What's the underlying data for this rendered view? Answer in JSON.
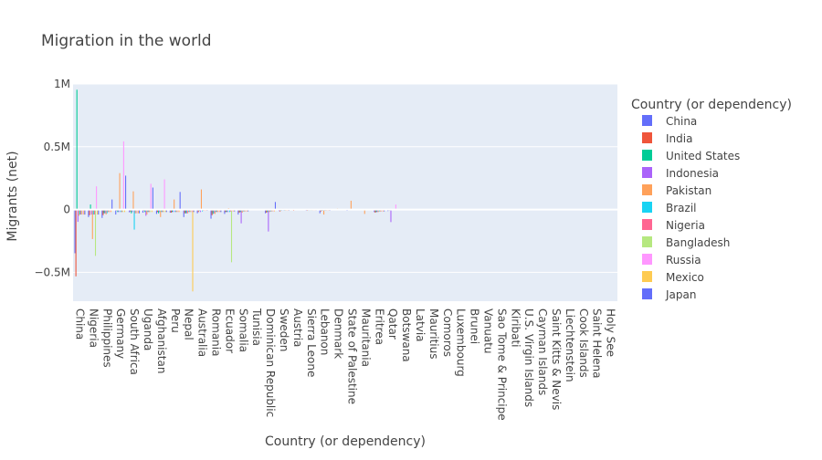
{
  "chart_data": {
    "type": "bar",
    "title": "Migration in the world",
    "xlabel": "Country (or dependency)",
    "ylabel": "Migrants (net)",
    "ylim": [
      -730000,
      1000000
    ],
    "yticks": [
      {
        "value": 1000000,
        "label": "1M"
      },
      {
        "value": 500000,
        "label": "0.5M"
      },
      {
        "value": 0,
        "label": "0"
      },
      {
        "value": -500000,
        "label": "−0.5M"
      }
    ],
    "grid": true,
    "legend": {
      "title": "Country (or dependency)",
      "position": "right"
    },
    "categories": [
      "China",
      "Nigeria",
      "Philippines",
      "Germany",
      "South Africa",
      "Uganda",
      "Afghanistan",
      "Peru",
      "Nepal",
      "Australia",
      "Romania",
      "Ecuador",
      "Somalia",
      "Tunisia",
      "Dominican Republic",
      "Sweden",
      "Austria",
      "Sierra Leone",
      "Lebanon",
      "Denmark",
      "State of Palestine",
      "Mauritania",
      "Eritrea",
      "Qatar",
      "Botswana",
      "Latvia",
      "Mauritius",
      "Comoros",
      "Luxembourg",
      "Brunei",
      "Vanuatu",
      "Sao Tome & Principe",
      "Kiribati",
      "U.S. Virgin Islands",
      "Cayman Islands",
      "Saint Kitts & Nevis",
      "Liechtenstein",
      "Cook Islands",
      "Saint Helena",
      "Holy See"
    ],
    "series": [
      {
        "name": "China",
        "color": "#636efa",
        "values": [
          -348000,
          -60000,
          -67000,
          -40000,
          -22000,
          -25000,
          -35000,
          -25000,
          -60000,
          -30000,
          -73000,
          -35000,
          -40000,
          -4000,
          -30000,
          -12000,
          -3000,
          -10000,
          -30000,
          -4000,
          -10000,
          -5000,
          -20000,
          -12000,
          -5000,
          -5000,
          -2000,
          -2000,
          -1000,
          0,
          -500,
          -500,
          -1000,
          -500,
          -400,
          -200,
          -200,
          -100,
          0,
          0
        ]
      },
      {
        "name": "India",
        "color": "#ef553b",
        "values": [
          -532000,
          -45000,
          -45000,
          -10000,
          -15000,
          -10000,
          -20000,
          -25000,
          -30000,
          -20000,
          -45000,
          -20000,
          -25000,
          -3000,
          -25000,
          -15000,
          -10000,
          -10000,
          -15000,
          -5000,
          -5000,
          -5000,
          -25000,
          -8000,
          -3000,
          -3000,
          -2000,
          -2000,
          -1000,
          0,
          0,
          0,
          -500,
          -500,
          -300,
          -200,
          -200,
          -100,
          0,
          0
        ]
      },
      {
        "name": "United States",
        "color": "#00cc96",
        "values": [
          954000,
          40000,
          -30000,
          -20000,
          -30000,
          -20000,
          -30000,
          -20000,
          -30000,
          -10000,
          -35000,
          -20000,
          -20000,
          -3000,
          -20000,
          -10000,
          -3000,
          -8000,
          -10000,
          -3000,
          -5000,
          -5000,
          -20000,
          -8000,
          -2000,
          -2000,
          -1000,
          -1000,
          -500,
          0,
          0,
          0,
          -500,
          -300,
          -200,
          -100,
          -100,
          -100,
          0,
          0
        ]
      },
      {
        "name": "Indonesia",
        "color": "#ab63fa",
        "values": [
          -98000,
          -40000,
          -30000,
          -20000,
          -20000,
          -50000,
          -20000,
          -20000,
          -30000,
          -20000,
          -30000,
          -20000,
          -110000,
          -3000,
          -175000,
          -10000,
          -3000,
          -8000,
          -10000,
          -3000,
          -5000,
          -5000,
          -20000,
          -100000,
          -2000,
          -2000,
          -1000,
          -1000,
          -500,
          0,
          0,
          0,
          -500,
          -300,
          -200,
          -100,
          -100,
          -100,
          0,
          0
        ]
      },
      {
        "name": "Pakistan",
        "color": "#ffa15a",
        "values": [
          -50000,
          -235000,
          -40000,
          290000,
          145000,
          -40000,
          -60000,
          80000,
          -30000,
          160000,
          -35000,
          10000,
          -25000,
          -3000,
          -20000,
          5000,
          -3000,
          -8000,
          -40000,
          8000,
          70000,
          -35000,
          -20000,
          -5000,
          -2000,
          -2000,
          -1000,
          -1000,
          2000,
          -500,
          0,
          0,
          -500,
          -300,
          -200,
          -100,
          -100,
          -100,
          0,
          0
        ]
      },
      {
        "name": "Brazil",
        "color": "#19d3f3",
        "values": [
          -40000,
          -40000,
          -30000,
          -20000,
          -160000,
          -20000,
          -20000,
          -20000,
          -20000,
          -15000,
          -20000,
          -20000,
          -15000,
          -3000,
          -15000,
          -10000,
          -3000,
          -8000,
          -10000,
          -3000,
          -5000,
          -5000,
          -15000,
          -5000,
          -2000,
          -2000,
          -1000,
          -1000,
          -500,
          0,
          0,
          0,
          -500,
          -300,
          -200,
          -100,
          -100,
          -100,
          0,
          0
        ]
      },
      {
        "name": "Nigeria",
        "color": "#ff6692",
        "values": [
          -40000,
          -40000,
          -20000,
          -20000,
          -30000,
          -20000,
          -20000,
          -20000,
          -20000,
          -10000,
          -20000,
          -15000,
          -15000,
          -3000,
          -15000,
          -10000,
          -3000,
          -8000,
          -10000,
          -3000,
          -5000,
          -5000,
          -15000,
          -5000,
          -2000,
          -2000,
          -1000,
          -1000,
          -500,
          0,
          0,
          0,
          -500,
          -300,
          -200,
          -100,
          -100,
          -100,
          0,
          0
        ]
      },
      {
        "name": "Bangladesh",
        "color": "#b6e880",
        "values": [
          -40000,
          -369000,
          -20000,
          -20000,
          -30000,
          -20000,
          -20000,
          -20000,
          -20000,
          -10000,
          -20000,
          -420000,
          -15000,
          -3000,
          -15000,
          -10000,
          -3000,
          -8000,
          -10000,
          -3000,
          -5000,
          -5000,
          -15000,
          -5000,
          -2000,
          -2000,
          -1000,
          -1000,
          -500,
          0,
          0,
          0,
          -500,
          -300,
          -200,
          -100,
          -100,
          -100,
          0,
          0
        ]
      },
      {
        "name": "Russia",
        "color": "#ff97ff",
        "values": [
          -40000,
          185000,
          -20000,
          543000,
          -30000,
          205000,
          240000,
          -20000,
          -20000,
          -10000,
          -20000,
          -15000,
          -15000,
          -3000,
          -15000,
          -10000,
          -3000,
          -8000,
          -10000,
          -3000,
          -5000,
          -5000,
          -15000,
          40000,
          -2000,
          -2000,
          -1000,
          -1000,
          -500,
          0,
          0,
          0,
          -500,
          -300,
          -200,
          -100,
          -100,
          -100,
          0,
          0
        ]
      },
      {
        "name": "Mexico",
        "color": "#fecb52",
        "values": [
          -40000,
          -40000,
          -20000,
          -20000,
          -30000,
          -20000,
          -20000,
          -20000,
          -652000,
          -10000,
          -20000,
          -15000,
          -15000,
          -3000,
          -15000,
          -10000,
          -3000,
          -8000,
          -10000,
          -3000,
          -5000,
          -5000,
          -15000,
          -5000,
          -2000,
          -2000,
          -1000,
          -1000,
          -500,
          0,
          0,
          0,
          -500,
          -300,
          -200,
          -100,
          -100,
          -100,
          0,
          0
        ]
      },
      {
        "name": "Japan",
        "color": "#636efa",
        "values": [
          -40000,
          -40000,
          80000,
          270000,
          -30000,
          175000,
          -20000,
          140000,
          -20000,
          -10000,
          -20000,
          -15000,
          -15000,
          -3000,
          60000,
          -10000,
          -3000,
          -8000,
          -10000,
          -3000,
          -5000,
          -5000,
          -15000,
          -5000,
          -2000,
          -2000,
          -1000,
          -1000,
          -500,
          0,
          0,
          0,
          -500,
          -300,
          -200,
          -100,
          -100,
          -100,
          0,
          0
        ]
      }
    ]
  }
}
